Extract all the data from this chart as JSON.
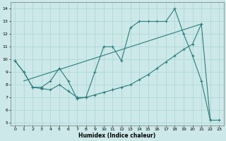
{
  "line1_x": [
    0,
    1,
    2,
    3,
    4,
    5,
    6,
    7,
    8,
    9,
    10,
    11,
    12,
    13,
    14,
    15,
    16,
    17,
    18,
    19,
    20,
    21,
    22,
    23
  ],
  "line1_y": [
    9.9,
    9.0,
    7.8,
    7.8,
    8.3,
    9.3,
    8.3,
    6.9,
    7.0,
    9.0,
    11.0,
    11.0,
    9.9,
    12.5,
    13.0,
    13.0,
    13.0,
    13.0,
    14.0,
    12.0,
    10.3,
    8.3,
    5.2,
    5.2
  ],
  "line2_x": [
    0,
    1,
    2,
    3,
    4,
    5,
    6,
    7,
    8,
    9,
    10,
    11,
    12,
    13,
    14,
    15,
    16,
    17,
    18,
    19,
    20,
    21,
    22
  ],
  "line2_y": [
    9.9,
    9.0,
    7.8,
    7.7,
    7.6,
    8.0,
    7.5,
    7.0,
    7.0,
    7.2,
    7.4,
    7.6,
    7.8,
    8.0,
    8.4,
    8.8,
    9.3,
    9.8,
    10.3,
    10.8,
    11.2,
    12.8,
    5.2
  ],
  "line3_x": [
    1,
    21
  ],
  "line3_y": [
    8.3,
    12.8
  ],
  "color": "#2d7d7d",
  "bg_color": "#cce8e8",
  "grid_color": "#aad4d4",
  "xlabel": "Humidex (Indice chaleur)",
  "xlim": [
    -0.5,
    23.5
  ],
  "ylim": [
    4.8,
    14.5
  ],
  "yticks": [
    5,
    6,
    7,
    8,
    9,
    10,
    11,
    12,
    13,
    14
  ],
  "xticks": [
    0,
    1,
    2,
    3,
    4,
    5,
    6,
    7,
    8,
    9,
    10,
    11,
    12,
    13,
    14,
    15,
    16,
    17,
    18,
    19,
    20,
    21,
    22,
    23
  ]
}
